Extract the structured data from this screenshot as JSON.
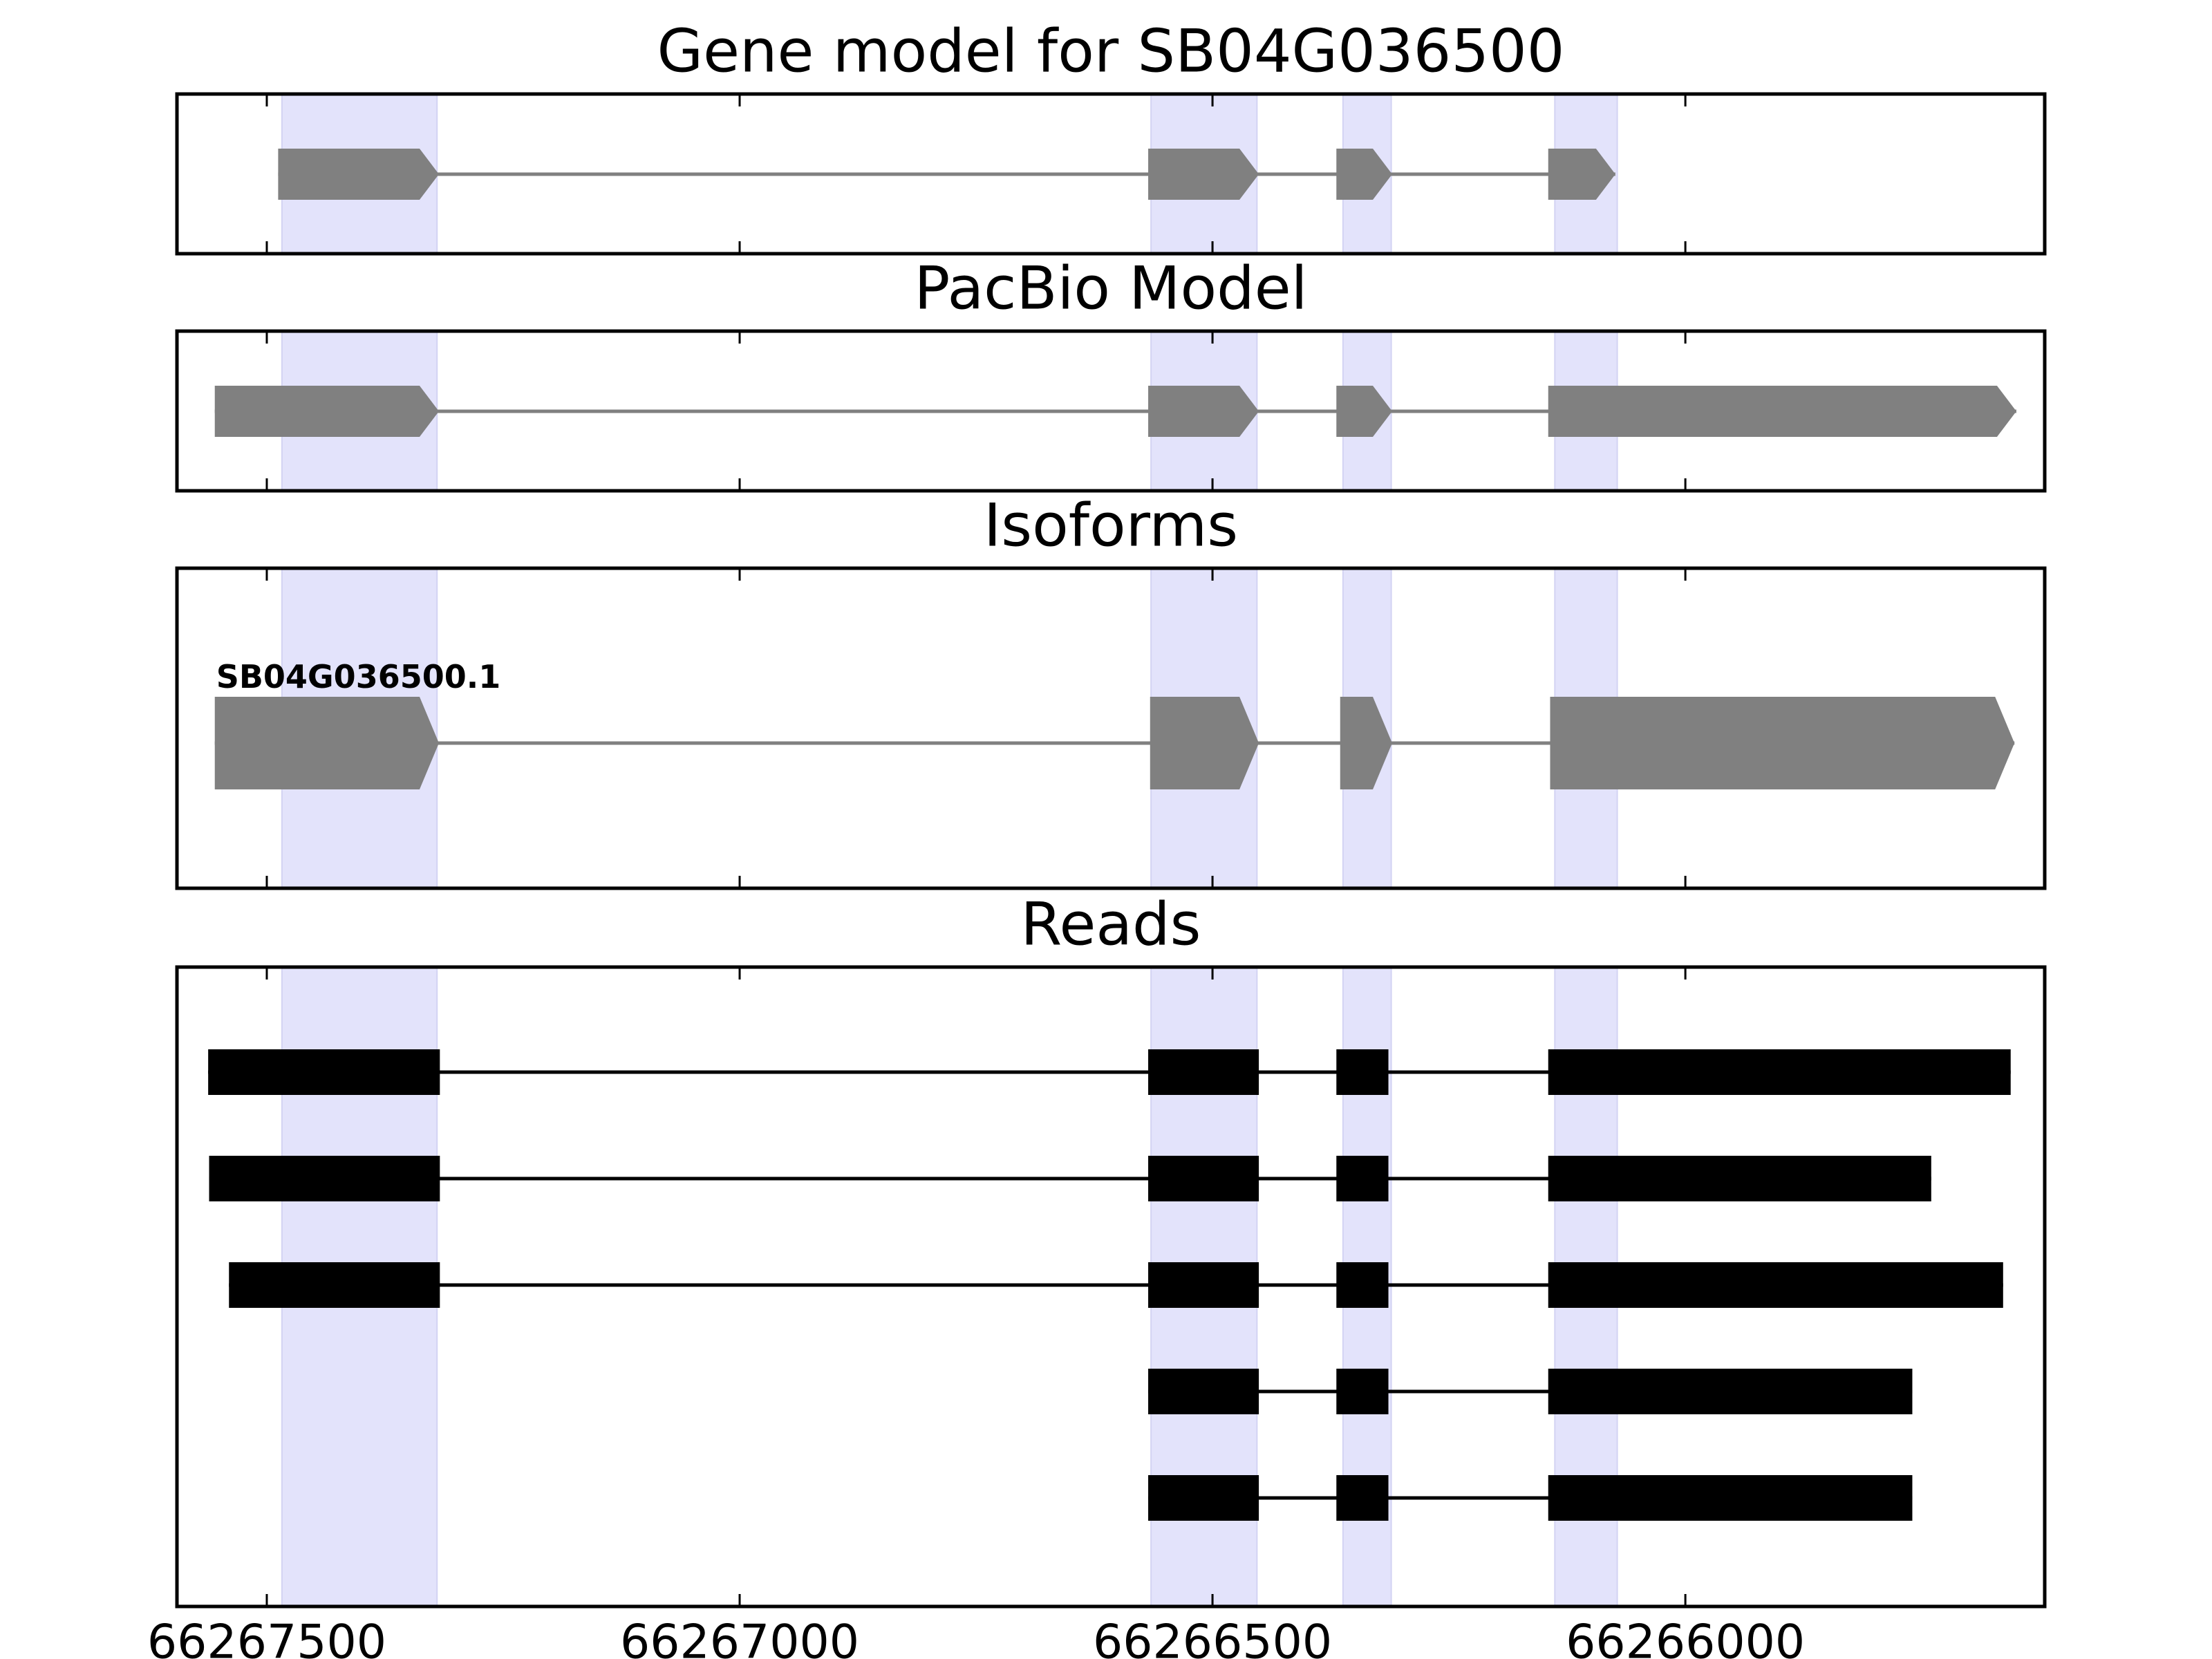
{
  "chart_data": {
    "type": "gene-track",
    "x_axis": {
      "ticks": [
        66267500,
        66267000,
        66266500,
        66266000
      ],
      "tick_labels": [
        "66267500",
        "66267000",
        "66266500",
        "66266000"
      ],
      "xlim": [
        66267595,
        66265620
      ],
      "reversed": true
    },
    "highlight_color": "#e3e3fb",
    "exon_color": "#808080",
    "read_color": "#000000",
    "highlight_regions": [
      [
        66267484,
        66267320
      ],
      [
        66266565,
        66266453
      ],
      [
        66266362,
        66266311
      ],
      [
        66266138,
        66266072
      ]
    ],
    "panels": [
      {
        "title": "Gene model for SB04G036500",
        "kind": "model",
        "strand": "-",
        "exons": [
          [
            66267488,
            66267318
          ],
          [
            66266568,
            66266451
          ],
          [
            66266369,
            66266310
          ],
          [
            66266145,
            66266074
          ]
        ]
      },
      {
        "title": "PacBio Model",
        "kind": "model",
        "strand": "-",
        "exons": [
          [
            66267555,
            66267318
          ],
          [
            66266568,
            66266451
          ],
          [
            66266369,
            66266310
          ],
          [
            66266145,
            66265650
          ]
        ]
      },
      {
        "title": "Isoforms",
        "kind": "isoform",
        "strand": "-",
        "isoform_label": "SB04G036500.1",
        "exons": [
          [
            66267555,
            66267318
          ],
          [
            66266566,
            66266451
          ],
          [
            66266365,
            66266310
          ],
          [
            66266143,
            66265652
          ]
        ]
      },
      {
        "title": "Reads",
        "kind": "reads",
        "reads": [
          {
            "exons": [
              [
                66267562,
                66267317
              ],
              [
                66266568,
                66266451
              ],
              [
                66266369,
                66266314
              ],
              [
                66266145,
                66265656
              ]
            ]
          },
          {
            "exons": [
              [
                66267561,
                66267317
              ],
              [
                66266568,
                66266451
              ],
              [
                66266369,
                66266314
              ],
              [
                66266145,
                66265740
              ]
            ]
          },
          {
            "exons": [
              [
                66267540,
                66267317
              ],
              [
                66266568,
                66266451
              ],
              [
                66266369,
                66266314
              ],
              [
                66266145,
                66265664
              ]
            ]
          },
          {
            "exons": [
              [
                66266568,
                66266451
              ],
              [
                66266369,
                66266314
              ],
              [
                66266145,
                66265760
              ]
            ]
          },
          {
            "exons": [
              [
                66266568,
                66266451
              ],
              [
                66266369,
                66266314
              ],
              [
                66266145,
                66265760
              ]
            ]
          }
        ]
      }
    ]
  }
}
